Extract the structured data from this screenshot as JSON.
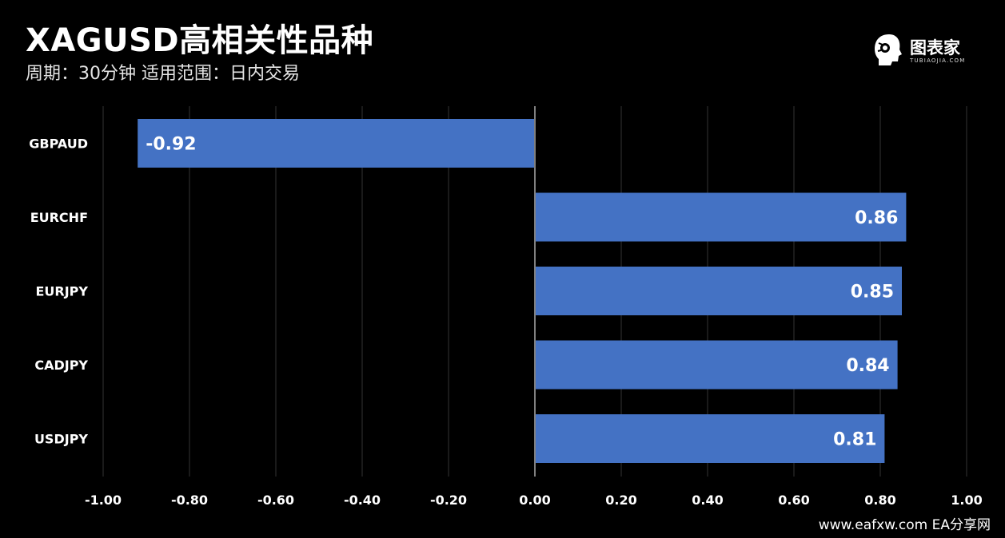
{
  "header": {
    "title": "XAGUSD高相关性品种",
    "subtitle": "周期：30分钟  适用范围：日内交易"
  },
  "logo": {
    "name": "图表家",
    "subtext": "TUBIAOJIA.COM",
    "icon": "robot-head-icon"
  },
  "footer": {
    "text": "www.eafxw.com   EA分享网"
  },
  "colors": {
    "background": "#000000",
    "bar": "#4472C4",
    "grid": "#333333",
    "axis": "#808080",
    "text": "#ffffff"
  },
  "chart_data": {
    "type": "bar",
    "orientation": "horizontal",
    "categories": [
      "GBPAUD",
      "EURCHF",
      "EURJPY",
      "CADJPY",
      "USDJPY"
    ],
    "values": [
      -0.92,
      0.86,
      0.85,
      0.84,
      0.81
    ],
    "data_labels": [
      "-0.92",
      "0.86",
      "0.85",
      "0.84",
      "0.81"
    ],
    "xlim": [
      -1.0,
      1.0
    ],
    "x_ticks": [
      -1.0,
      -0.8,
      -0.6,
      -0.4,
      -0.2,
      0.0,
      0.2,
      0.4,
      0.6,
      0.8,
      1.0
    ],
    "x_tick_labels": [
      "-1.00",
      "-0.80",
      "-0.60",
      "-0.40",
      "-0.20",
      "0.00",
      "0.20",
      "0.40",
      "0.60",
      "0.80",
      "1.00"
    ],
    "grid": true,
    "legend": "none"
  }
}
